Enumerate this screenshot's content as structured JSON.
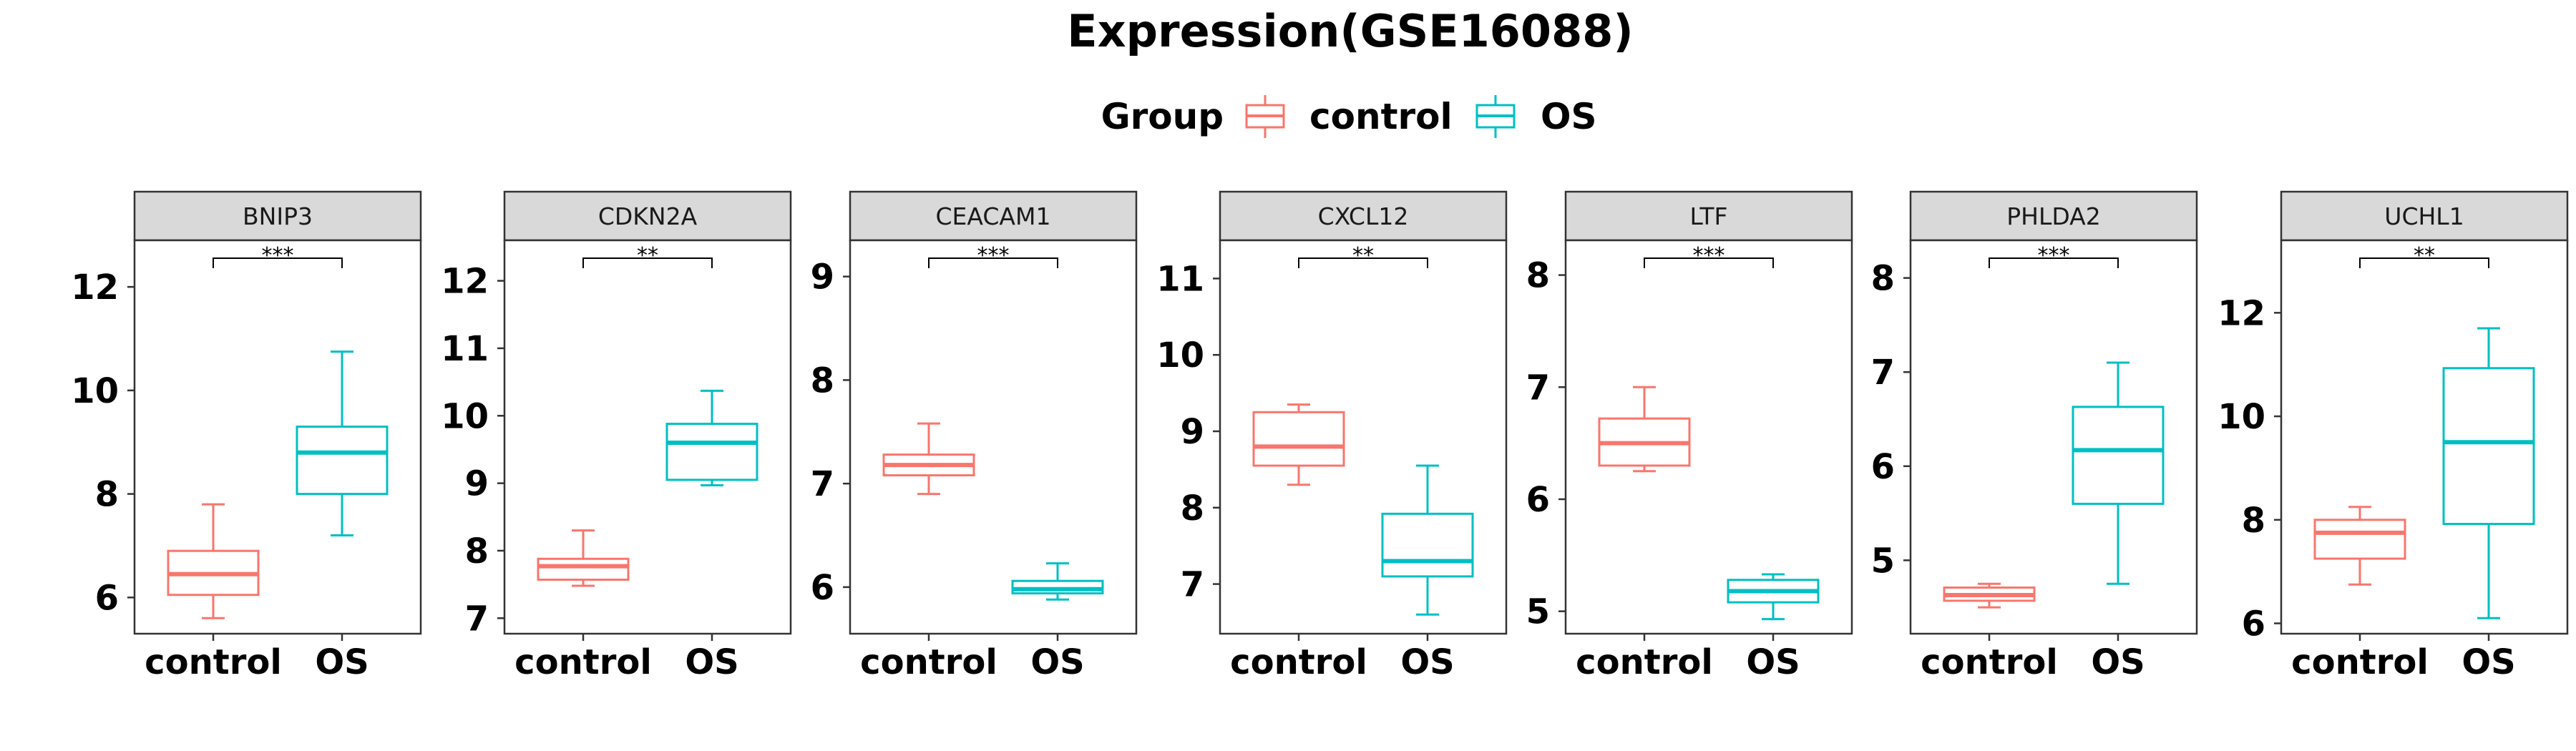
{
  "chart_data": {
    "type": "boxplot",
    "title": "Expression(GSE16088)",
    "legend": {
      "title": "Group",
      "position": "top",
      "entries": [
        {
          "label": "control",
          "color": "#F8766D"
        },
        {
          "label": "OS",
          "color": "#00BFC4"
        }
      ]
    },
    "categories": [
      "control",
      "OS"
    ],
    "colors": {
      "control": "#F8766D",
      "OS": "#00BFC4",
      "strip_fill": "#D9D9D9",
      "panel_border": "#333333"
    },
    "panels": [
      {
        "name": "BNIP3",
        "ylim": [
          5.3,
          12.9
        ],
        "yticks": [
          6,
          8,
          10,
          12
        ],
        "significance": "***",
        "boxes": [
          {
            "group": "control",
            "min": 5.6,
            "q1": 6.05,
            "median": 6.45,
            "q3": 6.9,
            "max": 7.8
          },
          {
            "group": "OS",
            "min": 7.2,
            "q1": 8.0,
            "median": 8.8,
            "q3": 9.3,
            "max": 10.75
          }
        ]
      },
      {
        "name": "CDKN2A",
        "ylim": [
          6.77,
          12.6
        ],
        "yticks": [
          7,
          8,
          9,
          10,
          11,
          12
        ],
        "significance": "**",
        "boxes": [
          {
            "group": "control",
            "min": 7.48,
            "q1": 7.57,
            "median": 7.77,
            "q3": 7.88,
            "max": 8.3
          },
          {
            "group": "OS",
            "min": 8.97,
            "q1": 9.05,
            "median": 9.6,
            "q3": 9.88,
            "max": 10.37
          }
        ]
      },
      {
        "name": "CEACAM1",
        "ylim": [
          5.55,
          9.35
        ],
        "yticks": [
          6,
          7,
          8,
          9
        ],
        "significance": "***",
        "boxes": [
          {
            "group": "control",
            "min": 6.9,
            "q1": 7.08,
            "median": 7.18,
            "q3": 7.28,
            "max": 7.58
          },
          {
            "group": "OS",
            "min": 5.88,
            "q1": 5.94,
            "median": 5.98,
            "q3": 6.06,
            "max": 6.23
          }
        ]
      },
      {
        "name": "CXCL12",
        "ylim": [
          6.35,
          11.5
        ],
        "yticks": [
          7,
          8,
          9,
          10,
          11
        ],
        "significance": "**",
        "boxes": [
          {
            "group": "control",
            "min": 8.3,
            "q1": 8.55,
            "median": 8.8,
            "q3": 9.25,
            "max": 9.35
          },
          {
            "group": "OS",
            "min": 6.6,
            "q1": 7.1,
            "median": 7.3,
            "q3": 7.92,
            "max": 8.55
          }
        ]
      },
      {
        "name": "LTF",
        "ylim": [
          4.8,
          8.31
        ],
        "yticks": [
          5,
          6,
          7,
          8
        ],
        "significance": "***",
        "boxes": [
          {
            "group": "control",
            "min": 6.25,
            "q1": 6.3,
            "median": 6.5,
            "q3": 6.72,
            "max": 7.0
          },
          {
            "group": "OS",
            "min": 4.93,
            "q1": 5.08,
            "median": 5.18,
            "q3": 5.28,
            "max": 5.33
          }
        ]
      },
      {
        "name": "PHLDA2",
        "ylim": [
          4.22,
          8.4
        ],
        "yticks": [
          5,
          6,
          7,
          8
        ],
        "significance": "***",
        "boxes": [
          {
            "group": "control",
            "min": 4.5,
            "q1": 4.57,
            "median": 4.63,
            "q3": 4.71,
            "max": 4.75
          },
          {
            "group": "OS",
            "min": 4.75,
            "q1": 5.6,
            "median": 6.17,
            "q3": 6.63,
            "max": 7.1
          }
        ]
      },
      {
        "name": "UCHL1",
        "ylim": [
          5.8,
          13.4
        ],
        "yticks": [
          6,
          8,
          10,
          12
        ],
        "significance": "**",
        "boxes": [
          {
            "group": "control",
            "min": 6.75,
            "q1": 7.25,
            "median": 7.75,
            "q3": 8.0,
            "max": 8.25
          },
          {
            "group": "OS",
            "min": 6.1,
            "q1": 7.92,
            "median": 9.5,
            "q3": 10.93,
            "max": 11.7
          }
        ]
      }
    ]
  }
}
